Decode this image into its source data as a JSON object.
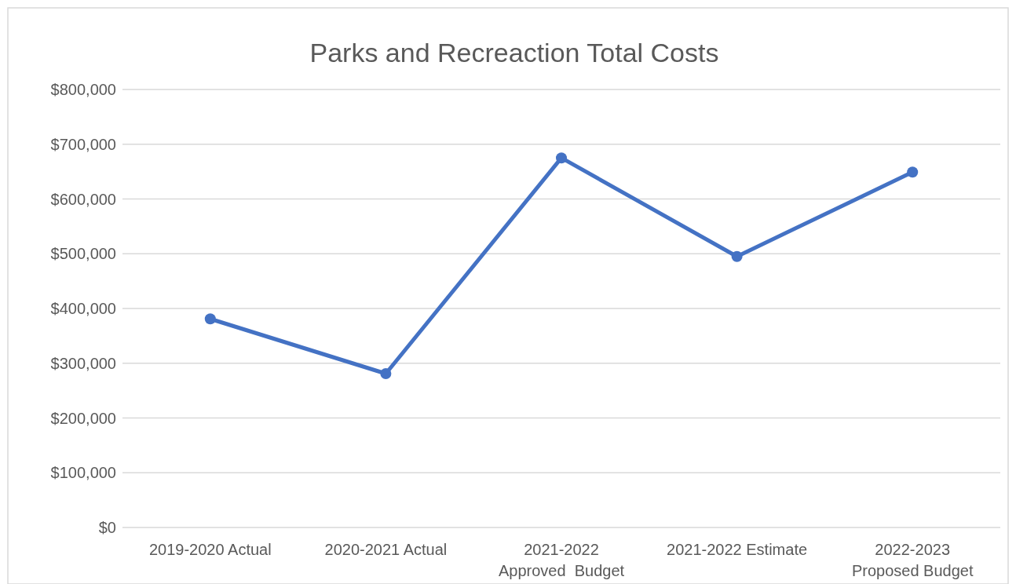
{
  "chart_data": {
    "type": "line",
    "title": "Parks and Recreaction Total Costs",
    "categories": [
      "2019-2020 Actual",
      "2020-2021 Actual",
      "2021-2022 Approved  Budget",
      "2021-2022 Estimate",
      "2022-2023 Proposed Budget"
    ],
    "series": [
      {
        "color": "#4472c4",
        "values": [
          381000,
          281000,
          675000,
          495000,
          649000
        ]
      }
    ],
    "ylim": [
      0,
      800000
    ],
    "yticks": [
      {
        "value": 0,
        "label": "$0"
      },
      {
        "value": 100000,
        "label": "$100,000"
      },
      {
        "value": 200000,
        "label": "$200,000"
      },
      {
        "value": 300000,
        "label": "$300,000"
      },
      {
        "value": 400000,
        "label": "$400,000"
      },
      {
        "value": 500000,
        "label": "$500,000"
      },
      {
        "value": 600000,
        "label": "$600,000"
      },
      {
        "value": 700000,
        "label": "$700,000"
      },
      {
        "value": 800000,
        "label": "$800,000"
      }
    ],
    "grid": "y",
    "marker": "circle",
    "line_style": "solid"
  }
}
